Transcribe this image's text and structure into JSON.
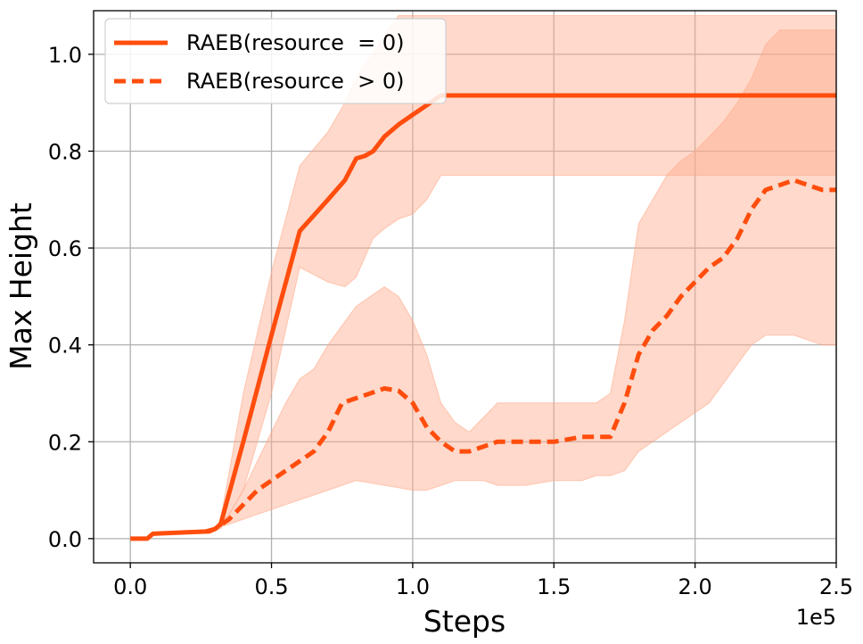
{
  "chart_data": {
    "type": "line",
    "xlabel": "Steps",
    "ylabel": "Max Height",
    "x_offset_label": "1e5",
    "xlim": [
      -0.13,
      2.5
    ],
    "ylim": [
      -0.05,
      1.09
    ],
    "xticks": [
      0.0,
      0.5,
      1.0,
      1.5,
      2.0,
      2.5
    ],
    "xtick_labels": [
      "0.0",
      "0.5",
      "1.0",
      "1.5",
      "2.0",
      "2.5"
    ],
    "yticks": [
      0.0,
      0.2,
      0.4,
      0.6,
      0.8,
      1.0
    ],
    "ytick_labels": [
      "0.0",
      "0.2",
      "0.4",
      "0.6",
      "0.8",
      "1.0"
    ],
    "grid": true,
    "legend_position": "top-left",
    "color": "#ff4d0d",
    "band_color": "#ffab8c",
    "series": [
      {
        "name": "RAEB(resource  = 0)",
        "style": "solid",
        "x": [
          0.0,
          0.06,
          0.08,
          0.2,
          0.28,
          0.3,
          0.32,
          0.4,
          0.5,
          0.6,
          0.7,
          0.76,
          0.8,
          0.83,
          0.86,
          0.9,
          0.95,
          1.0,
          1.05,
          1.1,
          1.5,
          2.0,
          2.5
        ],
        "y": [
          0.0,
          0.0,
          0.01,
          0.013,
          0.015,
          0.02,
          0.03,
          0.2,
          0.42,
          0.635,
          0.7,
          0.74,
          0.785,
          0.79,
          0.8,
          0.83,
          0.855,
          0.875,
          0.895,
          0.915,
          0.915,
          0.915,
          0.915
        ],
        "band_upper": [
          0.0,
          0.0,
          0.01,
          0.013,
          0.015,
          0.02,
          0.04,
          0.3,
          0.55,
          0.77,
          0.84,
          0.9,
          0.95,
          0.98,
          1.0,
          1.04,
          1.08,
          1.08,
          1.08,
          1.08,
          1.08,
          1.08,
          1.08
        ],
        "band_lower": [
          0.0,
          0.0,
          0.01,
          0.013,
          0.015,
          0.02,
          0.02,
          0.1,
          0.3,
          0.56,
          0.53,
          0.52,
          0.54,
          0.58,
          0.62,
          0.64,
          0.66,
          0.67,
          0.7,
          0.75,
          0.75,
          0.75,
          0.75
        ]
      },
      {
        "name": "RAEB(resource  > 0)",
        "style": "dashed",
        "x": [
          0.27,
          0.3,
          0.35,
          0.4,
          0.45,
          0.5,
          0.55,
          0.6,
          0.65,
          0.7,
          0.75,
          0.8,
          0.85,
          0.9,
          0.95,
          1.0,
          1.05,
          1.1,
          1.15,
          1.2,
          1.25,
          1.3,
          1.4,
          1.5,
          1.6,
          1.65,
          1.7,
          1.75,
          1.8,
          1.85,
          1.9,
          1.95,
          2.0,
          2.05,
          2.1,
          2.15,
          2.2,
          2.25,
          2.3,
          2.35,
          2.4,
          2.45,
          2.5
        ],
        "y": [
          0.015,
          0.02,
          0.04,
          0.07,
          0.1,
          0.12,
          0.14,
          0.16,
          0.18,
          0.22,
          0.28,
          0.29,
          0.3,
          0.31,
          0.305,
          0.28,
          0.23,
          0.2,
          0.18,
          0.18,
          0.19,
          0.2,
          0.2,
          0.2,
          0.21,
          0.21,
          0.21,
          0.28,
          0.38,
          0.43,
          0.46,
          0.5,
          0.53,
          0.56,
          0.58,
          0.62,
          0.68,
          0.72,
          0.73,
          0.74,
          0.73,
          0.72,
          0.72
        ],
        "band_upper": [
          0.015,
          0.02,
          0.05,
          0.1,
          0.16,
          0.22,
          0.28,
          0.33,
          0.35,
          0.4,
          0.44,
          0.48,
          0.5,
          0.52,
          0.5,
          0.45,
          0.38,
          0.28,
          0.24,
          0.22,
          0.25,
          0.28,
          0.28,
          0.28,
          0.28,
          0.28,
          0.3,
          0.45,
          0.65,
          0.7,
          0.75,
          0.78,
          0.8,
          0.83,
          0.86,
          0.9,
          0.95,
          1.02,
          1.05,
          1.05,
          1.05,
          1.05,
          1.05
        ],
        "band_lower": [
          0.015,
          0.02,
          0.03,
          0.04,
          0.05,
          0.06,
          0.07,
          0.08,
          0.09,
          0.1,
          0.11,
          0.12,
          0.115,
          0.11,
          0.105,
          0.1,
          0.1,
          0.11,
          0.12,
          0.12,
          0.12,
          0.11,
          0.11,
          0.12,
          0.12,
          0.13,
          0.13,
          0.14,
          0.18,
          0.2,
          0.22,
          0.24,
          0.26,
          0.28,
          0.32,
          0.36,
          0.4,
          0.42,
          0.42,
          0.42,
          0.41,
          0.4,
          0.4
        ]
      }
    ]
  }
}
